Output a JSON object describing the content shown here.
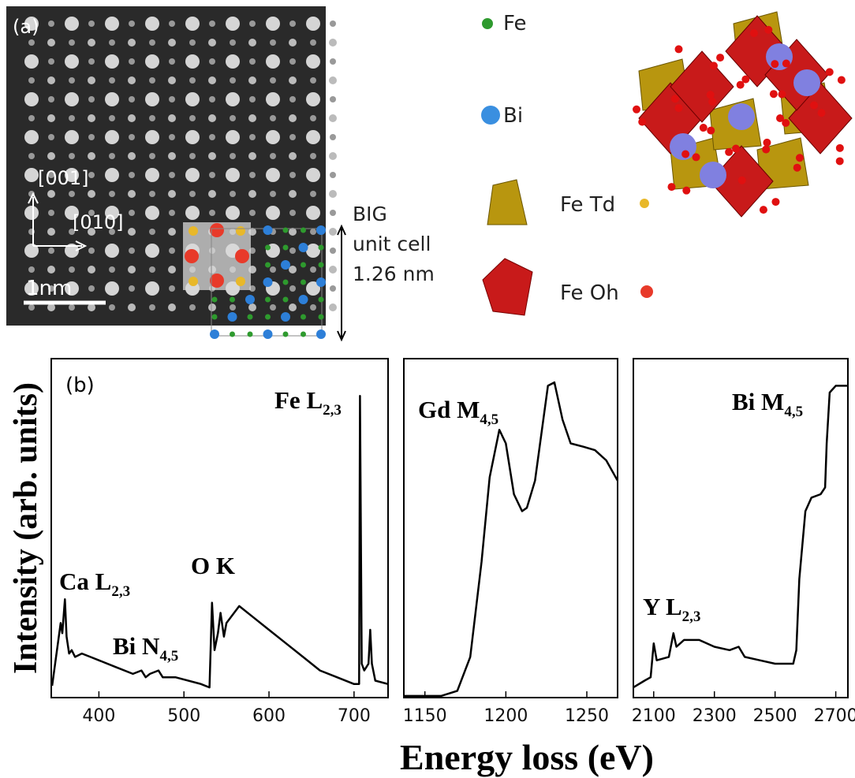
{
  "panel_a": {
    "label": "(a)",
    "axis_up": "[001]",
    "axis_right": "[010]",
    "scale": "1nm",
    "cell_lines": [
      "BIG",
      "unit cell",
      "1.26 nm"
    ],
    "legend": [
      "Fe",
      "Bi",
      "Fe Td",
      "Fe Oh"
    ]
  },
  "chart_data": [
    {
      "type": "line",
      "panel_label": "(b)",
      "ylabel": "Intensity (arb. units)",
      "color": "#000000",
      "xlim": [
        344,
        740
      ],
      "ylim": [
        0,
        100
      ],
      "xticks": [
        400,
        500,
        600,
        700
      ],
      "x": [
        345,
        355,
        357,
        360,
        362,
        365,
        368,
        372,
        380,
        390,
        400,
        420,
        440,
        450,
        455,
        460,
        470,
        475,
        490,
        520,
        530,
        533,
        536,
        540,
        543,
        547,
        550,
        565,
        580,
        600,
        620,
        640,
        660,
        680,
        700,
        706,
        707,
        709,
        712,
        717,
        719,
        721,
        725,
        740
      ],
      "values": [
        3.5,
        22,
        19,
        29,
        18,
        13,
        14,
        12,
        13,
        12,
        11,
        9,
        7,
        8,
        6,
        7,
        8,
        6,
        6,
        4,
        3,
        28,
        14,
        19,
        25,
        18,
        22,
        27,
        24,
        20,
        16,
        12,
        8,
        6,
        4,
        4,
        89,
        10,
        8,
        10,
        20,
        10,
        5,
        4
      ],
      "annotations": [
        {
          "text": "Ca L",
          "sub": "2,3"
        },
        {
          "text": "Bi N",
          "sub": "4,5"
        },
        {
          "text": "O K"
        },
        {
          "text": "Fe L",
          "sub": "2,3"
        }
      ]
    },
    {
      "type": "line",
      "xlabel": "Energy loss (eV)",
      "color": "#000000",
      "xlim": [
        1137,
        1269
      ],
      "ylim": [
        0,
        100
      ],
      "xticks": [
        1150,
        1200,
        1250
      ],
      "x": [
        1137,
        1160,
        1170,
        1178,
        1185,
        1190,
        1196,
        1200,
        1205,
        1210,
        1213,
        1218,
        1222,
        1226,
        1230,
        1235,
        1240,
        1248,
        1255,
        1262,
        1269
      ],
      "values": [
        0.5,
        0.5,
        2,
        12,
        40,
        65,
        79,
        75,
        60,
        55,
        56,
        64,
        78,
        92,
        93,
        82,
        75,
        74,
        73,
        70,
        64
      ],
      "annotations": [
        {
          "text": "Gd M",
          "sub": "4,5"
        }
      ]
    },
    {
      "type": "line",
      "color": "#000000",
      "xlim": [
        2033,
        2740
      ],
      "ylim": [
        0,
        100
      ],
      "xticks": [
        2100,
        2300,
        2500,
        2700
      ],
      "x": [
        2033,
        2070,
        2090,
        2100,
        2110,
        2150,
        2165,
        2175,
        2200,
        2250,
        2300,
        2350,
        2380,
        2400,
        2450,
        2500,
        2560,
        2570,
        2580,
        2600,
        2620,
        2650,
        2665,
        2670,
        2680,
        2700,
        2740
      ],
      "values": [
        3,
        5,
        6,
        16,
        11,
        12,
        19,
        15,
        17,
        17,
        15,
        14,
        15,
        12,
        11,
        10,
        10,
        14,
        35,
        55,
        59,
        60,
        62,
        75,
        90,
        92,
        92
      ],
      "annotations": [
        {
          "text": "Y L",
          "sub": "2,3"
        },
        {
          "text": "Bi M",
          "sub": "4,5"
        }
      ]
    }
  ]
}
